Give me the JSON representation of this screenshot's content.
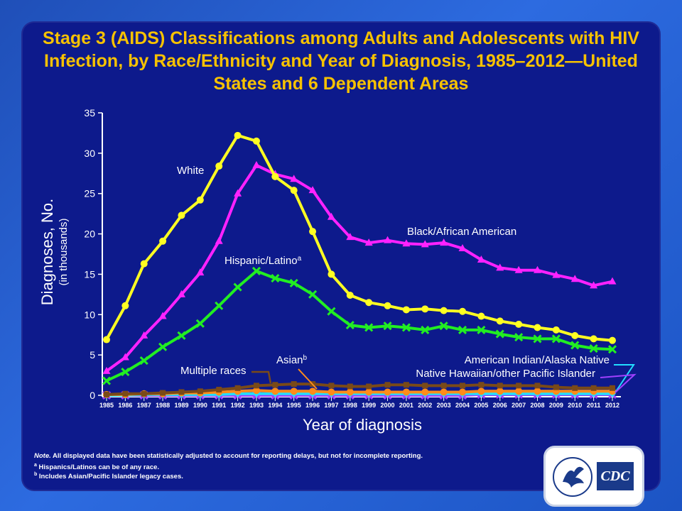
{
  "title": "Stage 3 (AIDS) Classifications among Adults and Adolescents with HIV Infection, by Race/Ethnicity and Year of Diagnosis, 1985–2012—United States and 6 Dependent Areas",
  "notes": {
    "line1_prefix": "Note.",
    "line1": "All displayed data have been statistically adjusted to account for reporting delays, but not for incomplete reporting.",
    "line2_sup": "a",
    "line2": "Hispanics/Latinos can be of any race.",
    "line3_sup": "b",
    "line3": "Includes Asian/Pacific Islander legacy cases."
  },
  "logo": {
    "text": "CDC"
  },
  "colors": {
    "white": "#ffff22",
    "black": "#ff22ff",
    "hispanic": "#22ee22",
    "multiple": "#7a4a18",
    "asian": "#ff8c1a",
    "aian": "#22ddff",
    "nhopi": "#a040ff",
    "axis": "#ffffff",
    "title": "#f7c200"
  },
  "chart_data": {
    "type": "line",
    "xlabel": "Year of diagnosis",
    "ylabel": "Diagnoses, No.",
    "ylabel_sub": "(in thousands)",
    "ylim": [
      0,
      35
    ],
    "yticks": [
      0,
      5,
      10,
      15,
      20,
      25,
      30,
      35
    ],
    "x": [
      "1985",
      "1986",
      "1987",
      "1988",
      "1989",
      "1990",
      "1991",
      "1992",
      "1993",
      "1994",
      "1995",
      "1996",
      "1997",
      "1998",
      "1999",
      "2000",
      "2001",
      "2002",
      "2003",
      "2004",
      "2005",
      "2006",
      "2007",
      "2008",
      "2009",
      "2010",
      "2011",
      "2012"
    ],
    "series": [
      {
        "name": "White",
        "label": "White",
        "key": "white",
        "marker": "circle",
        "values": [
          6.9,
          11.1,
          16.3,
          19.1,
          22.3,
          24.2,
          28.4,
          32.2,
          31.5,
          27.1,
          25.4,
          20.3,
          15.0,
          12.4,
          11.5,
          11.1,
          10.6,
          10.7,
          10.5,
          10.4,
          9.8,
          9.2,
          8.8,
          8.4,
          8.1,
          7.4,
          7.0,
          6.8
        ]
      },
      {
        "name": "Black/African American",
        "label": "Black/African American",
        "key": "black",
        "marker": "triangle",
        "values": [
          3.0,
          4.7,
          7.4,
          9.8,
          12.5,
          15.2,
          19.1,
          25.0,
          28.5,
          27.4,
          26.8,
          25.4,
          22.1,
          19.6,
          18.9,
          19.2,
          18.8,
          18.7,
          18.9,
          18.2,
          16.8,
          15.8,
          15.5,
          15.5,
          14.9,
          14.4,
          13.6,
          14.1
        ]
      },
      {
        "name": "Hispanic/Latino",
        "label": "Hispanic/Latino",
        "label_sup": "a",
        "key": "hispanic",
        "marker": "x",
        "values": [
          1.8,
          2.9,
          4.3,
          6.0,
          7.4,
          8.9,
          11.1,
          13.4,
          15.4,
          14.5,
          13.9,
          12.5,
          10.4,
          8.7,
          8.4,
          8.6,
          8.4,
          8.1,
          8.6,
          8.1,
          8.1,
          7.6,
          7.2,
          7.0,
          7.0,
          6.2,
          5.8,
          5.7
        ]
      },
      {
        "name": "Multiple races",
        "label": "Multiple races",
        "key": "multiple",
        "marker": "square",
        "values": [
          0.1,
          0.2,
          0.2,
          0.3,
          0.4,
          0.5,
          0.7,
          0.9,
          1.2,
          1.3,
          1.4,
          1.4,
          1.2,
          1.1,
          1.1,
          1.3,
          1.3,
          1.2,
          1.2,
          1.2,
          1.3,
          1.2,
          1.2,
          1.2,
          1.0,
          0.9,
          0.9,
          0.9
        ]
      },
      {
        "name": "Asian",
        "label": "Asian",
        "label_sup": "b",
        "key": "asian",
        "marker": "circle",
        "values": [
          0.1,
          0.1,
          0.2,
          0.2,
          0.3,
          0.3,
          0.4,
          0.5,
          0.6,
          0.5,
          0.5,
          0.5,
          0.4,
          0.4,
          0.4,
          0.4,
          0.4,
          0.4,
          0.4,
          0.4,
          0.5,
          0.5,
          0.5,
          0.5,
          0.5,
          0.5,
          0.5,
          0.5
        ]
      },
      {
        "name": "American Indian/Alaska Native",
        "label": "American Indian/Alaska Native",
        "key": "aian",
        "marker": "diamond",
        "values": [
          0.0,
          0.0,
          0.1,
          0.1,
          0.1,
          0.1,
          0.1,
          0.2,
          0.2,
          0.2,
          0.2,
          0.2,
          0.2,
          0.2,
          0.2,
          0.2,
          0.2,
          0.2,
          0.2,
          0.2,
          0.2,
          0.2,
          0.2,
          0.2,
          0.2,
          0.2,
          0.2,
          0.2
        ]
      },
      {
        "name": "Native Hawaiian/other Pacific Islander",
        "label": "Native Hawaiian/other Pacific Islander",
        "key": "nhopi",
        "marker": "x",
        "values": [
          0.0,
          0.0,
          0.0,
          0.0,
          0.0,
          0.0,
          0.0,
          0.0,
          0.0,
          0.0,
          0.0,
          0.0,
          0.0,
          0.0,
          0.0,
          0.0,
          0.0,
          0.0,
          0.0,
          0.0,
          0.1,
          0.1,
          0.1,
          0.1,
          0.1,
          0.1,
          0.1,
          0.1
        ]
      }
    ]
  }
}
